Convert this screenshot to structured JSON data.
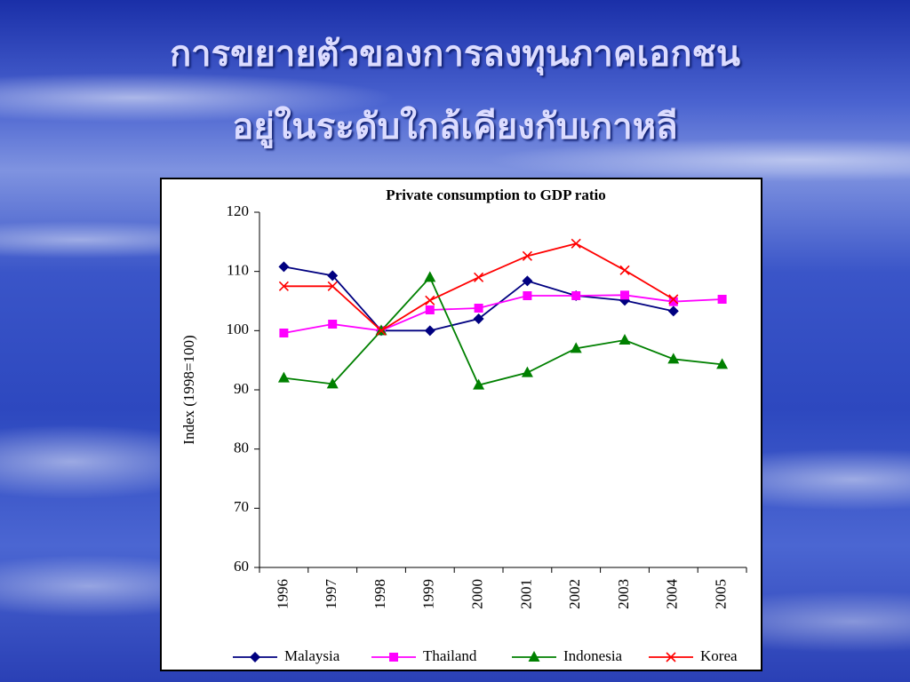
{
  "slide": {
    "title_lines": [
      "การขยายตัวของการลงทุนภาคเอกชน",
      "อยู่ในระดับใกล้เคียงกับเกาหลี"
    ]
  },
  "chart_data": {
    "type": "line",
    "title": "Private consumption to GDP ratio",
    "y_label": "Index (1998=100)",
    "categories": [
      "1996",
      "1997",
      "1998",
      "1999",
      "2000",
      "2001",
      "2002",
      "2003",
      "2004",
      "2005"
    ],
    "series": [
      {
        "name": "Malaysia",
        "color": "#000080",
        "marker": "diamond",
        "values": [
          110.8,
          109.3,
          100,
          100,
          102,
          108.4,
          105.9,
          105.1,
          103.3,
          null
        ]
      },
      {
        "name": "Thailand",
        "color": "#ff00ff",
        "marker": "square",
        "values": [
          99.6,
          101.1,
          100,
          103.5,
          103.8,
          105.9,
          105.9,
          106,
          104.9,
          105.3
        ]
      },
      {
        "name": "Indonesia",
        "color": "#008000",
        "marker": "triangle",
        "values": [
          92,
          91,
          100,
          109,
          90.8,
          92.9,
          97,
          98.4,
          95.2,
          94.3
        ]
      },
      {
        "name": "Korea",
        "color": "#ff0000",
        "marker": "x",
        "values": [
          107.5,
          107.5,
          100,
          105.1,
          109,
          112.6,
          114.7,
          110.2,
          105.3,
          null
        ]
      }
    ],
    "ylim": [
      60,
      120
    ],
    "yticks": [
      60,
      70,
      80,
      90,
      100,
      110,
      120
    ],
    "grid": false,
    "legend": "bottom"
  }
}
